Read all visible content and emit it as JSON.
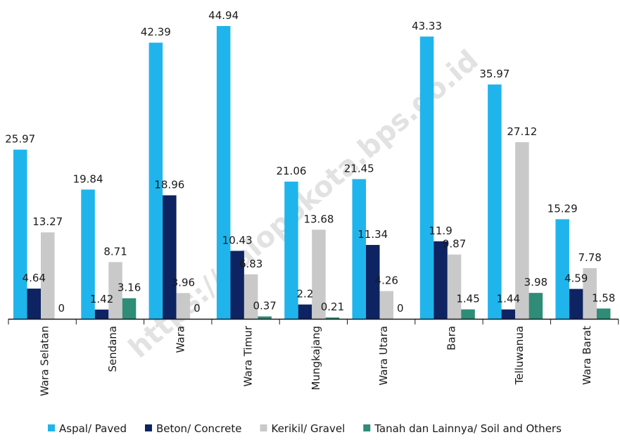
{
  "chart_data": {
    "type": "bar",
    "categories": [
      "Wara Selatan",
      "Sendana",
      "Wara",
      "Wara Timur",
      "Mungkajang",
      "Wara Utara",
      "Bara",
      "Telluwanua",
      "Wara Barat"
    ],
    "series": [
      {
        "name": "Aspal/ Paved",
        "color": "#1fb5ec",
        "values": [
          25.97,
          19.84,
          42.39,
          44.94,
          21.06,
          21.45,
          43.33,
          35.97,
          15.29
        ]
      },
      {
        "name": "Beton/ Concrete",
        "color": "#0e2361",
        "values": [
          4.64,
          1.42,
          18.96,
          10.43,
          2.2,
          11.34,
          11.9,
          1.44,
          4.59
        ]
      },
      {
        "name": "Kerikil/ Gravel",
        "color": "#c9c9c9",
        "values": [
          13.27,
          8.71,
          3.96,
          6.83,
          13.68,
          4.26,
          9.87,
          27.12,
          7.78
        ]
      },
      {
        "name": "Tanah dan Lainnya/ Soil and Others",
        "color": "#2e8c77",
        "values": [
          0,
          3.16,
          0,
          0.37,
          0.21,
          0,
          1.45,
          3.98,
          1.58
        ]
      }
    ],
    "ylim": [
      0,
      45
    ],
    "grid": false,
    "legend_position": "bottom"
  },
  "watermark": "https://palopokota.bps.go.id"
}
